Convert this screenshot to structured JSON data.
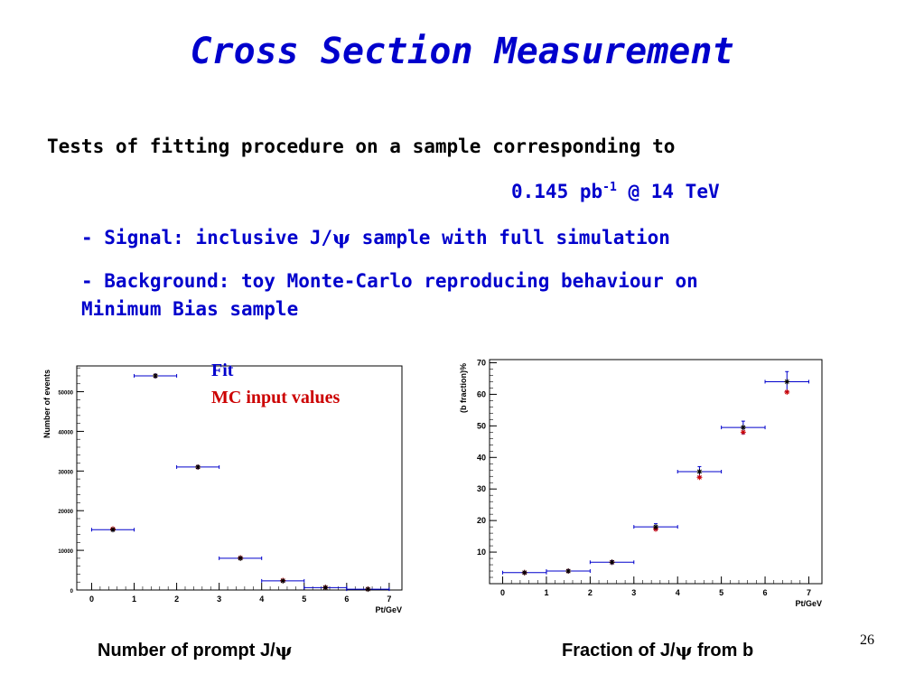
{
  "slide": {
    "title": "Cross Section Measurement",
    "intro": "Tests of fitting procedure on a sample corresponding to",
    "luminosity_value": "0.145 pb",
    "luminosity_exp": "-1",
    "luminosity_rest": " @ 14 TeV",
    "signal_prefix": "- Signal: inclusive J/",
    "psi": "ψ",
    "signal_suffix": " sample with full simulation",
    "background_line1": "- Background: toy Monte-Carlo reproducing behaviour on",
    "background_line2": "Minimum Bias sample",
    "legend_fit": "Fit",
    "legend_mc": "MC input values",
    "caption_left_prefix": "Number of prompt J/",
    "caption_right_prefix": "Fraction of J/",
    "caption_right_suffix": " from b",
    "page_number": "26"
  },
  "colors": {
    "title": "#0000cc",
    "fit": "#0000cc",
    "mc": "#cc0000",
    "point": "#000000"
  },
  "chart_data": [
    {
      "type": "scatter",
      "title": "",
      "xlabel": "Pt/GeV",
      "ylabel": "Number of events",
      "xlim": [
        -0.35,
        7.3
      ],
      "ylim": [
        0,
        56500
      ],
      "xticks": [
        0,
        1,
        2,
        3,
        4,
        5,
        6,
        7
      ],
      "yticks": [
        0,
        10000,
        20000,
        30000,
        40000,
        50000
      ],
      "series": [
        {
          "name": "Fit",
          "x": [
            0.5,
            1.5,
            2.5,
            3.5,
            4.5,
            5.5,
            6.5
          ],
          "y": [
            15200,
            54000,
            31000,
            8000,
            2300,
            600,
            200
          ],
          "xerr": [
            0.5,
            0.5,
            0.5,
            0.5,
            0.5,
            0.5,
            0.5
          ],
          "yerr": [
            300,
            400,
            350,
            200,
            150,
            80,
            50
          ]
        },
        {
          "name": "MC input values",
          "x": [
            0.5,
            1.5,
            2.5,
            3.5,
            4.5,
            5.5,
            6.5
          ],
          "y": [
            15400,
            54000,
            31000,
            8100,
            2400,
            650,
            250
          ]
        }
      ]
    },
    {
      "type": "scatter",
      "title": "",
      "xlabel": "Pt/GeV",
      "ylabel": "(b fraction)%",
      "xlim": [
        -0.3,
        7.3
      ],
      "ylim": [
        0,
        71
      ],
      "xticks": [
        0,
        1,
        2,
        3,
        4,
        5,
        6,
        7
      ],
      "yticks": [
        10,
        20,
        30,
        40,
        50,
        60,
        70
      ],
      "series": [
        {
          "name": "Fit",
          "x": [
            0.5,
            1.5,
            2.5,
            3.5,
            4.5,
            5.5,
            6.5
          ],
          "y": [
            3.5,
            4.0,
            6.8,
            18.0,
            35.5,
            49.5,
            64.0
          ],
          "xerr": [
            0.5,
            0.5,
            0.5,
            0.5,
            0.5,
            0.5,
            0.5
          ],
          "yerr": [
            0.3,
            0.4,
            0.5,
            1.0,
            1.6,
            2.0,
            3.2
          ]
        },
        {
          "name": "MC input values",
          "x": [
            0.5,
            1.5,
            2.5,
            3.5,
            4.5,
            5.5,
            6.5
          ],
          "y": [
            3.5,
            4.0,
            6.8,
            17.3,
            33.7,
            48.0,
            60.7
          ]
        }
      ]
    }
  ]
}
